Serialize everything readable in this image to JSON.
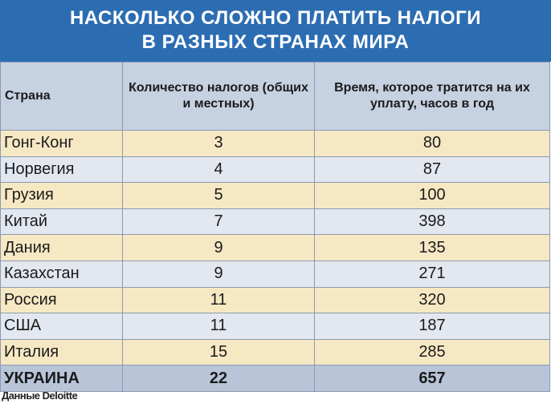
{
  "title": {
    "line1": "НАСКОЛЬКО СЛОЖНО ПЛАТИТЬ НАЛОГИ",
    "line2": "В РАЗНЫХ СТРАНАХ МИРА"
  },
  "colors": {
    "header_bar": "#2c6db2",
    "column_header": "#c6d1e1",
    "row_odd": "#f7e8c4",
    "row_even": "#e2e7f0",
    "total_row": "#b8c5d9"
  },
  "source": "Данные Deloitte",
  "chart_data": {
    "type": "table",
    "columns": [
      "Страна",
      "Количество налогов (общих и местных)",
      "Время, которое тратится на их уплату, часов в год"
    ],
    "rows": [
      [
        "Гонг-Конг",
        "3",
        "80"
      ],
      [
        "Норвегия",
        "4",
        "87"
      ],
      [
        "Грузия",
        "5",
        "100"
      ],
      [
        "Китай",
        "7",
        "398"
      ],
      [
        "Дания",
        "9",
        "135"
      ],
      [
        "Казахстан",
        "9",
        "271"
      ],
      [
        "Россия",
        "11",
        "320"
      ],
      [
        "США",
        "11",
        "187"
      ],
      [
        "Италия",
        "15",
        "285"
      ],
      [
        "УКРАИНА",
        "22",
        "657"
      ]
    ]
  }
}
